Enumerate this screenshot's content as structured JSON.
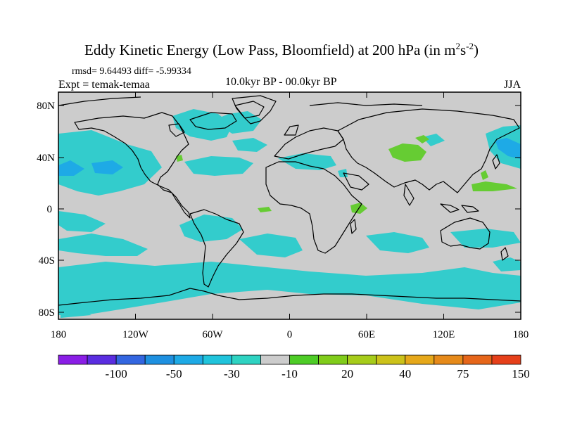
{
  "header": {
    "title": "Eddy Kinetic Energy (Low Pass, Bloomfield) at 200 hPa (in m",
    "title_sup1": "2",
    "title_mid": "s",
    "title_sup2": "-2",
    "title_end": ")",
    "stats": "rmsd= 9.64493 diff= -5.99334",
    "expt": "Expt = temak-temaa",
    "period": "10.0kyr BP - 00.0kyr BP",
    "season": "JJA"
  },
  "map": {
    "lat_ticks": [
      "80N",
      "40N",
      "0",
      "40S",
      "80S"
    ],
    "lon_ticks": [
      "180",
      "120W",
      "60W",
      "0",
      "60E",
      "120E",
      "180"
    ],
    "lat_values": [
      80,
      40,
      0,
      -40,
      -80
    ],
    "lon_values": [
      -180,
      -120,
      -60,
      0,
      60,
      120,
      180
    ],
    "colors": {
      "background": "#cccccc",
      "negative_fill": "#33cccc",
      "positive_fill": "#66cc33",
      "coast": "#000000"
    }
  },
  "colorbar": {
    "colors": [
      "#8a1ee6",
      "#5a2de0",
      "#3366e0",
      "#1e90e0",
      "#1eaae6",
      "#20c4dc",
      "#2ed3c2",
      "#cccccc",
      "#4dcc26",
      "#80cc1a",
      "#a6cc1a",
      "#ccc21a",
      "#e6a81a",
      "#e68a1a",
      "#e6661a",
      "#e6401a"
    ],
    "labels": [
      "-100",
      "-50",
      "-30",
      "-10",
      "20",
      "40",
      "75",
      "150"
    ]
  }
}
